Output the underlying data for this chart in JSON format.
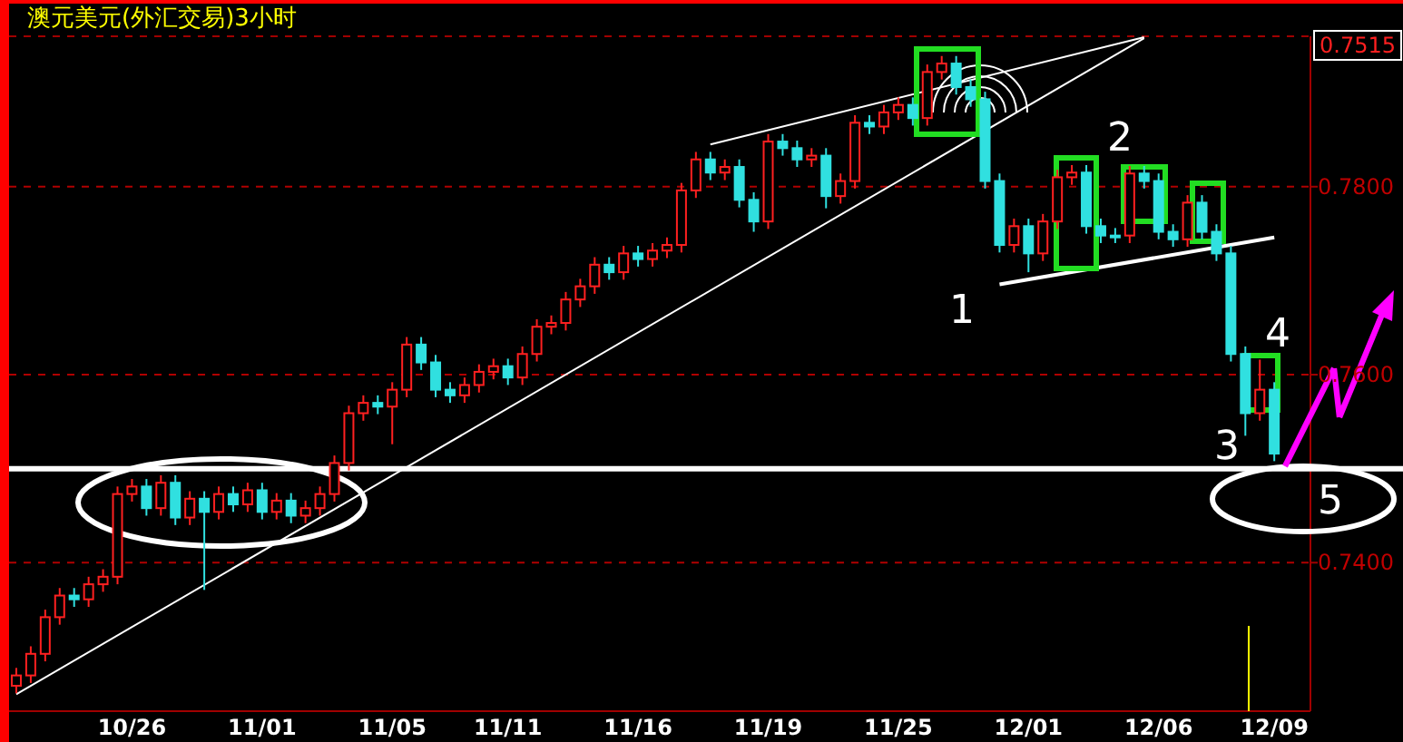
{
  "chart_data": {
    "type": "candlestick",
    "title": "澳元美元(外汇交易)3小时",
    "categories": [
      null,
      null,
      null,
      null,
      null,
      null,
      null,
      null,
      "10/26",
      null,
      null,
      null,
      null,
      null,
      null,
      null,
      null,
      "11/01",
      null,
      null,
      null,
      null,
      null,
      null,
      null,
      null,
      "11/05",
      null,
      null,
      null,
      null,
      null,
      null,
      null,
      "11/11",
      null,
      null,
      null,
      null,
      null,
      null,
      null,
      null,
      "11/16",
      null,
      null,
      null,
      null,
      null,
      null,
      null,
      null,
      "11/19",
      null,
      null,
      null,
      null,
      null,
      null,
      null,
      null,
      "11/25",
      null,
      null,
      null,
      null,
      null,
      null,
      null,
      null,
      "12/01",
      null,
      null,
      null,
      null,
      null,
      null,
      null,
      null,
      "12/06",
      null,
      null,
      null,
      null,
      null,
      null,
      null,
      "12/09"
    ],
    "ohlc": [
      [
        0.7269,
        0.7288,
        0.7261,
        0.728
      ],
      [
        0.728,
        0.7311,
        0.7272,
        0.7303
      ],
      [
        0.7303,
        0.735,
        0.7295,
        0.7342
      ],
      [
        0.7342,
        0.7373,
        0.7334,
        0.7365
      ],
      [
        0.7365,
        0.7373,
        0.7353,
        0.7361
      ],
      [
        0.7361,
        0.7385,
        0.7353,
        0.7377
      ],
      [
        0.7377,
        0.7393,
        0.7369,
        0.7385
      ],
      [
        0.7385,
        0.7481,
        0.7377,
        0.7473
      ],
      [
        0.7473,
        0.7489,
        0.7465,
        0.7481
      ],
      [
        0.7481,
        0.7489,
        0.745,
        0.7458
      ],
      [
        0.7458,
        0.7493,
        0.745,
        0.7485
      ],
      [
        0.7485,
        0.7493,
        0.744,
        0.7448
      ],
      [
        0.7448,
        0.7476,
        0.744,
        0.7468
      ],
      [
        0.7468,
        0.7476,
        0.7371,
        0.7454
      ],
      [
        0.7454,
        0.7481,
        0.7446,
        0.7473
      ],
      [
        0.7473,
        0.7481,
        0.7454,
        0.7462
      ],
      [
        0.7462,
        0.7485,
        0.7454,
        0.7477
      ],
      [
        0.7477,
        0.7485,
        0.7446,
        0.7454
      ],
      [
        0.7454,
        0.7474,
        0.7446,
        0.7466
      ],
      [
        0.7466,
        0.7474,
        0.7442,
        0.745
      ],
      [
        0.745,
        0.7466,
        0.7442,
        0.7458
      ],
      [
        0.7458,
        0.7481,
        0.745,
        0.7473
      ],
      [
        0.7473,
        0.7514,
        0.7465,
        0.7506
      ],
      [
        0.7506,
        0.7567,
        0.7498,
        0.7559
      ],
      [
        0.7559,
        0.7578,
        0.7551,
        0.757
      ],
      [
        0.757,
        0.7578,
        0.7558,
        0.7566
      ],
      [
        0.7566,
        0.7592,
        0.7526,
        0.7584
      ],
      [
        0.7584,
        0.764,
        0.7576,
        0.7632
      ],
      [
        0.7632,
        0.764,
        0.7605,
        0.7613
      ],
      [
        0.7613,
        0.7621,
        0.7576,
        0.7584
      ],
      [
        0.7584,
        0.7592,
        0.757,
        0.7578
      ],
      [
        0.7578,
        0.7597,
        0.757,
        0.7589
      ],
      [
        0.7589,
        0.7611,
        0.7581,
        0.7603
      ],
      [
        0.7603,
        0.7617,
        0.7595,
        0.7609
      ],
      [
        0.7609,
        0.7617,
        0.7589,
        0.7597
      ],
      [
        0.7597,
        0.763,
        0.7589,
        0.7622
      ],
      [
        0.7622,
        0.7659,
        0.7614,
        0.7651
      ],
      [
        0.7651,
        0.7663,
        0.7643,
        0.7655
      ],
      [
        0.7655,
        0.7688,
        0.7647,
        0.768
      ],
      [
        0.768,
        0.7702,
        0.7672,
        0.7694
      ],
      [
        0.7694,
        0.7725,
        0.7686,
        0.7717
      ],
      [
        0.7717,
        0.7725,
        0.7701,
        0.7709
      ],
      [
        0.7709,
        0.7737,
        0.7701,
        0.7729
      ],
      [
        0.7729,
        0.7737,
        0.7715,
        0.7723
      ],
      [
        0.7723,
        0.774,
        0.7715,
        0.7732
      ],
      [
        0.7732,
        0.7746,
        0.7724,
        0.7738
      ],
      [
        0.7738,
        0.7804,
        0.773,
        0.7796
      ],
      [
        0.7796,
        0.7837,
        0.7788,
        0.7829
      ],
      [
        0.7829,
        0.7837,
        0.7807,
        0.7815
      ],
      [
        0.7815,
        0.7829,
        0.7807,
        0.7821
      ],
      [
        0.7821,
        0.7829,
        0.7778,
        0.7786
      ],
      [
        0.7786,
        0.7794,
        0.7752,
        0.7763
      ],
      [
        0.7763,
        0.7856,
        0.7755,
        0.7848
      ],
      [
        0.7848,
        0.7856,
        0.7833,
        0.7841
      ],
      [
        0.7841,
        0.7849,
        0.7821,
        0.7829
      ],
      [
        0.7829,
        0.7841,
        0.7821,
        0.7833
      ],
      [
        0.7833,
        0.7841,
        0.7777,
        0.779
      ],
      [
        0.779,
        0.7814,
        0.7782,
        0.7806
      ],
      [
        0.7806,
        0.7876,
        0.7798,
        0.7868
      ],
      [
        0.7868,
        0.7876,
        0.7856,
        0.7864
      ],
      [
        0.7864,
        0.7887,
        0.7856,
        0.7879
      ],
      [
        0.7879,
        0.7895,
        0.7871,
        0.7887
      ],
      [
        0.7887,
        0.7895,
        0.7865,
        0.7873
      ],
      [
        0.7873,
        0.793,
        0.7865,
        0.7922
      ],
      [
        0.7922,
        0.7939,
        0.7914,
        0.7931
      ],
      [
        0.7931,
        0.7939,
        0.7898,
        0.7906
      ],
      [
        0.7906,
        0.7914,
        0.7885,
        0.7893
      ],
      [
        0.7893,
        0.7901,
        0.7798,
        0.7806
      ],
      [
        0.7806,
        0.7814,
        0.773,
        0.7738
      ],
      [
        0.7738,
        0.7766,
        0.773,
        0.7758
      ],
      [
        0.7758,
        0.7766,
        0.7709,
        0.7729
      ],
      [
        0.7729,
        0.7771,
        0.7721,
        0.7763
      ],
      [
        0.7763,
        0.7818,
        0.7755,
        0.781
      ],
      [
        0.781,
        0.7823,
        0.7802,
        0.7815
      ],
      [
        0.7815,
        0.7823,
        0.775,
        0.7758
      ],
      [
        0.7758,
        0.7766,
        0.774,
        0.7748
      ],
      [
        0.7748,
        0.7756,
        0.774,
        0.7748
      ],
      [
        0.7748,
        0.7822,
        0.774,
        0.7814
      ],
      [
        0.7814,
        0.7822,
        0.7798,
        0.7806
      ],
      [
        0.7806,
        0.7814,
        0.7744,
        0.7752
      ],
      [
        0.7752,
        0.776,
        0.7736,
        0.7744
      ],
      [
        0.7744,
        0.7791,
        0.7736,
        0.7783
      ],
      [
        0.7783,
        0.7791,
        0.7744,
        0.7752
      ],
      [
        0.7752,
        0.776,
        0.7721,
        0.7729
      ],
      [
        0.7729,
        0.7737,
        0.7614,
        0.7622
      ],
      [
        0.7622,
        0.763,
        0.7535,
        0.7559
      ],
      [
        0.7559,
        0.7616,
        0.7551,
        0.7584
      ],
      [
        0.7584,
        0.7592,
        0.7508,
        0.7516
      ]
    ],
    "colors": [
      "#ff2020",
      "#ff2020",
      "#ff2020",
      "#ff2020",
      "#30e0e0",
      "#ff2020",
      "#ff2020",
      "#ff2020",
      "#ff2020",
      "#30e0e0",
      "#ff2020",
      "#30e0e0",
      "#ff2020",
      "#30e0e0",
      "#ff2020",
      "#30e0e0",
      "#ff2020",
      "#30e0e0",
      "#ff2020",
      "#30e0e0",
      "#ff2020",
      "#ff2020",
      "#ff2020",
      "#ff2020",
      "#ff2020",
      "#30e0e0",
      "#ff2020",
      "#ff2020",
      "#30e0e0",
      "#30e0e0",
      "#30e0e0",
      "#ff2020",
      "#ff2020",
      "#ff2020",
      "#30e0e0",
      "#ff2020",
      "#ff2020",
      "#ff2020",
      "#ff2020",
      "#ff2020",
      "#ff2020",
      "#30e0e0",
      "#ff2020",
      "#30e0e0",
      "#ff2020",
      "#ff2020",
      "#ff2020",
      "#ff2020",
      "#30e0e0",
      "#ff2020",
      "#30e0e0",
      "#30e0e0",
      "#ff2020",
      "#30e0e0",
      "#30e0e0",
      "#ff2020",
      "#30e0e0",
      "#ff2020",
      "#ff2020",
      "#30e0e0",
      "#ff2020",
      "#ff2020",
      "#30e0e0",
      "#ff2020",
      "#ff2020",
      "#30e0e0",
      "#30e0e0",
      "#30e0e0",
      "#30e0e0",
      "#ff2020",
      "#30e0e0",
      "#ff2020",
      "#ff2020",
      "#ff2020",
      "#30e0e0",
      "#30e0e0",
      "#30e0e0",
      "#ff2020",
      "#30e0e0",
      "#30e0e0",
      "#30e0e0",
      "#ff2020",
      "#30e0e0",
      "#30e0e0",
      "#30e0e0",
      "#30e0e0",
      "#ff2020",
      "#30e0e0"
    ],
    "ylim": [
      0.7242,
      0.796
    ],
    "yticks": [
      {
        "value": 0.78,
        "label": "0.7800"
      },
      {
        "value": 0.76,
        "label": "0.7600"
      },
      {
        "value": 0.74,
        "label": "0.7400"
      }
    ],
    "grid": "y",
    "ref_lines": [
      {
        "axis": "y",
        "value": 0.75,
        "color": "#ffffff"
      }
    ],
    "series": [
      {
        "type": "line",
        "color": "#ffffff",
        "values": [
          0.726,
          null,
          null,
          null,
          null,
          null,
          null,
          null,
          null,
          null,
          null,
          null,
          null,
          null,
          null,
          null,
          null,
          null,
          null,
          null,
          null,
          null,
          null,
          null,
          null,
          null,
          null,
          null,
          null,
          null,
          null,
          null,
          null,
          null,
          null,
          null,
          null,
          null,
          null,
          null,
          null,
          null,
          null,
          null,
          null,
          null,
          null,
          null,
          null,
          null,
          null,
          null,
          null,
          null,
          null,
          null,
          null,
          null,
          null,
          null,
          null,
          null,
          null,
          null,
          null,
          null,
          null,
          null,
          null,
          null,
          null,
          null,
          null,
          null,
          null,
          null,
          null,
          null,
          0.7958,
          null,
          null,
          null,
          null,
          null,
          null,
          null,
          null,
          null
        ]
      },
      {
        "type": "line",
        "color": "#ffffff",
        "values": [
          null,
          null,
          null,
          null,
          null,
          null,
          null,
          null,
          null,
          null,
          null,
          null,
          null,
          null,
          null,
          null,
          null,
          null,
          null,
          null,
          null,
          null,
          null,
          null,
          null,
          null,
          null,
          null,
          null,
          null,
          null,
          null,
          null,
          null,
          null,
          null,
          null,
          null,
          null,
          null,
          null,
          null,
          null,
          null,
          null,
          null,
          null,
          null,
          0.7845,
          null,
          null,
          null,
          null,
          null,
          null,
          null,
          null,
          null,
          null,
          null,
          null,
          null,
          null,
          null,
          null,
          null,
          null,
          null,
          null,
          null,
          null,
          null,
          null,
          null,
          null,
          null,
          null,
          null,
          0.7959,
          null,
          null,
          null,
          null,
          null,
          null,
          null,
          null,
          null
        ]
      },
      {
        "type": "line",
        "color": "#ffffff",
        "values": [
          null,
          null,
          null,
          null,
          null,
          null,
          null,
          null,
          null,
          null,
          null,
          null,
          null,
          null,
          null,
          null,
          null,
          null,
          null,
          null,
          null,
          null,
          null,
          null,
          null,
          null,
          null,
          null,
          null,
          null,
          null,
          null,
          null,
          null,
          null,
          null,
          null,
          null,
          null,
          null,
          null,
          null,
          null,
          null,
          null,
          null,
          null,
          null,
          null,
          null,
          null,
          null,
          null,
          null,
          null,
          null,
          null,
          null,
          null,
          null,
          null,
          null,
          null,
          null,
          null,
          null,
          null,
          null,
          0.7696,
          null,
          null,
          null,
          null,
          null,
          null,
          null,
          null,
          null,
          null,
          null,
          null,
          null,
          null,
          null,
          null,
          null,
          null,
          0.7746
        ]
      }
    ],
    "annotations": [
      "1",
      "2",
      "3",
      "4",
      "5",
      "0.7515"
    ]
  }
}
